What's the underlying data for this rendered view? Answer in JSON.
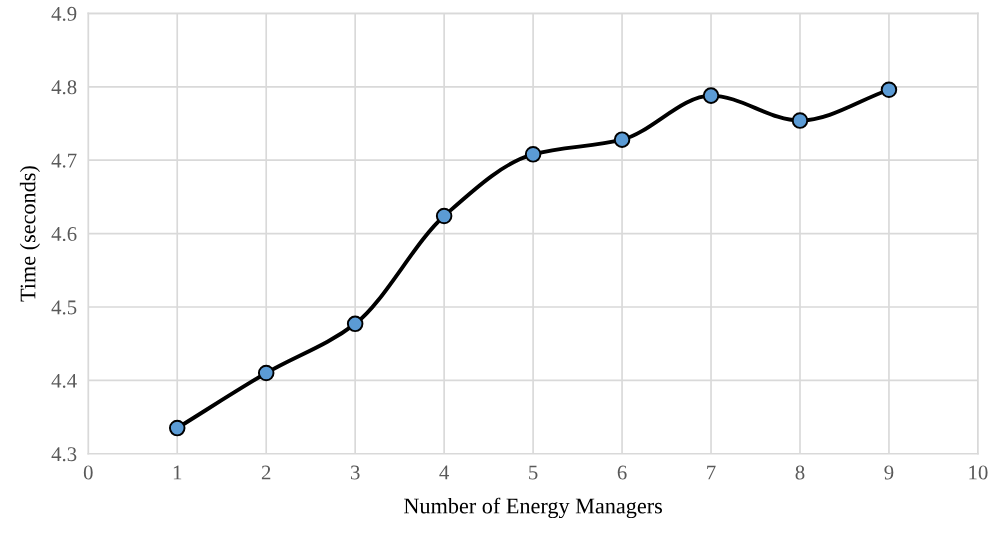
{
  "chart_data": {
    "type": "line",
    "xlabel": "Number of Energy Managers",
    "ylabel": "Time (seconds)",
    "x": [
      1,
      2,
      3,
      4,
      5,
      6,
      7,
      8,
      9
    ],
    "series": [
      {
        "color": "#000000",
        "colors": [
          "#5b9bd5",
          "#5b9bd5",
          "#5b9bd5",
          "#5b9bd5",
          "#5b9bd5",
          "#5b9bd5",
          "#5b9bd5",
          "#5b9bd5",
          "#5b9bd5"
        ],
        "values": [
          4.335,
          4.41,
          4.477,
          4.624,
          4.708,
          4.728,
          4.788,
          4.754,
          4.796
        ]
      }
    ],
    "xlim": [
      0,
      10
    ],
    "xticks": [
      0,
      1,
      2,
      3,
      4,
      5,
      6,
      7,
      8,
      9,
      10
    ],
    "ylim": [
      4.3,
      4.9
    ],
    "yticks": [
      4.3,
      4.4,
      4.5,
      4.6,
      4.7,
      4.8,
      4.9
    ],
    "grid": true,
    "marker": "circle",
    "line_style": "solid"
  }
}
